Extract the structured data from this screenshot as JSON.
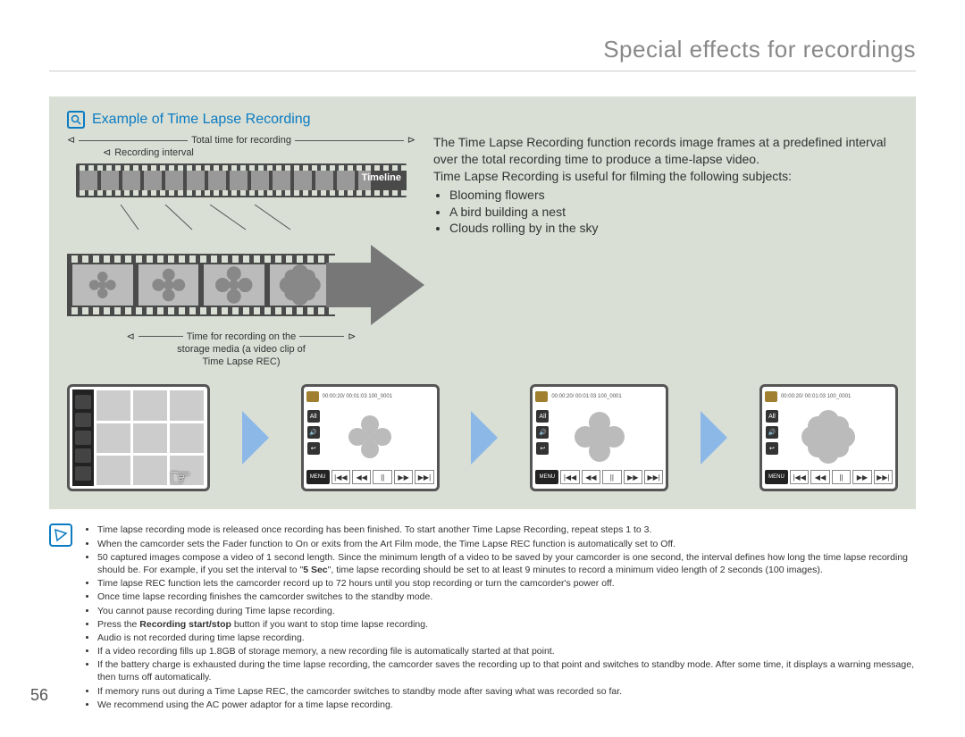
{
  "page_title": "Special effects for recordings",
  "page_number": "56",
  "example": {
    "title": "Example of Time Lapse Recording",
    "labels": {
      "total_time": "Total time for recording",
      "interval": "Recording interval",
      "timeline": "Timeline",
      "storage_time_l1": "Time for recording on the",
      "storage_time_l2": "storage media (a video clip of",
      "storage_time_l3": "Time Lapse REC)"
    },
    "description": {
      "p1": "The Time Lapse Recording function records image frames at a predefined interval over the total recording time to produce a time-lapse video.",
      "p2": "Time Lapse Recording is useful for filming the following subjects:",
      "bullets": [
        "Blooming flowers",
        "A bird building a nest",
        "Clouds rolling by in the sky"
      ]
    }
  },
  "playback": {
    "timecode": "00:00:20/ 00:01:03   100_0001",
    "hd": "HD",
    "all": "All",
    "menu": "MENU",
    "controls": [
      "|◀◀",
      "◀◀",
      "||",
      "▶▶",
      "▶▶|"
    ]
  },
  "notes": [
    "Time lapse recording mode is released once recording has been finished. To start another Time Lapse Recording, repeat steps 1 to 3.",
    "When the camcorder sets the Fader function to On or exits from the Art Film mode, the Time Lapse REC function is automatically set to Off.",
    "50 captured images compose a video of 1 second length. Since the minimum length of a video to be saved by your camcorder is one second, the interval defines how long the time lapse recording should be. For example, if you set the interval to \"<b>5 Sec</b>\", time lapse recording should be set to at least 9 minutes to record a minimum video length of 2 seconds (100 images).",
    "Time lapse REC function lets the camcorder record up to 72 hours until you stop recording or turn the camcorder's power off.",
    "Once time lapse recording finishes the camcorder switches to the standby mode.",
    "You cannot pause recording during Time lapse recording.",
    "Press the <b>Recording start/stop</b> button if you want to stop time lapse recording.",
    "Audio is not recorded during time lapse recording.",
    "If a video recording fills up 1.8GB of storage memory, a new recording file is automatically started at that point.",
    "If the battery charge is exhausted during the time lapse recording, the camcorder saves the recording up to that point and switches to standby mode. After some time, it displays a warning message, then turns off automatically.",
    "If memory runs out during a Time Lapse REC, the camcorder switches to standby mode after saving what was recorded so far.",
    "We recommend using the AC power adaptor for a time lapse recording."
  ],
  "colors": {
    "title_color": "#888888",
    "accent_blue": "#0b7bc2",
    "box_bg": "#d9dfd5",
    "arrow_blue": "#8cb8e8",
    "film_dark": "#4a4a4a"
  }
}
